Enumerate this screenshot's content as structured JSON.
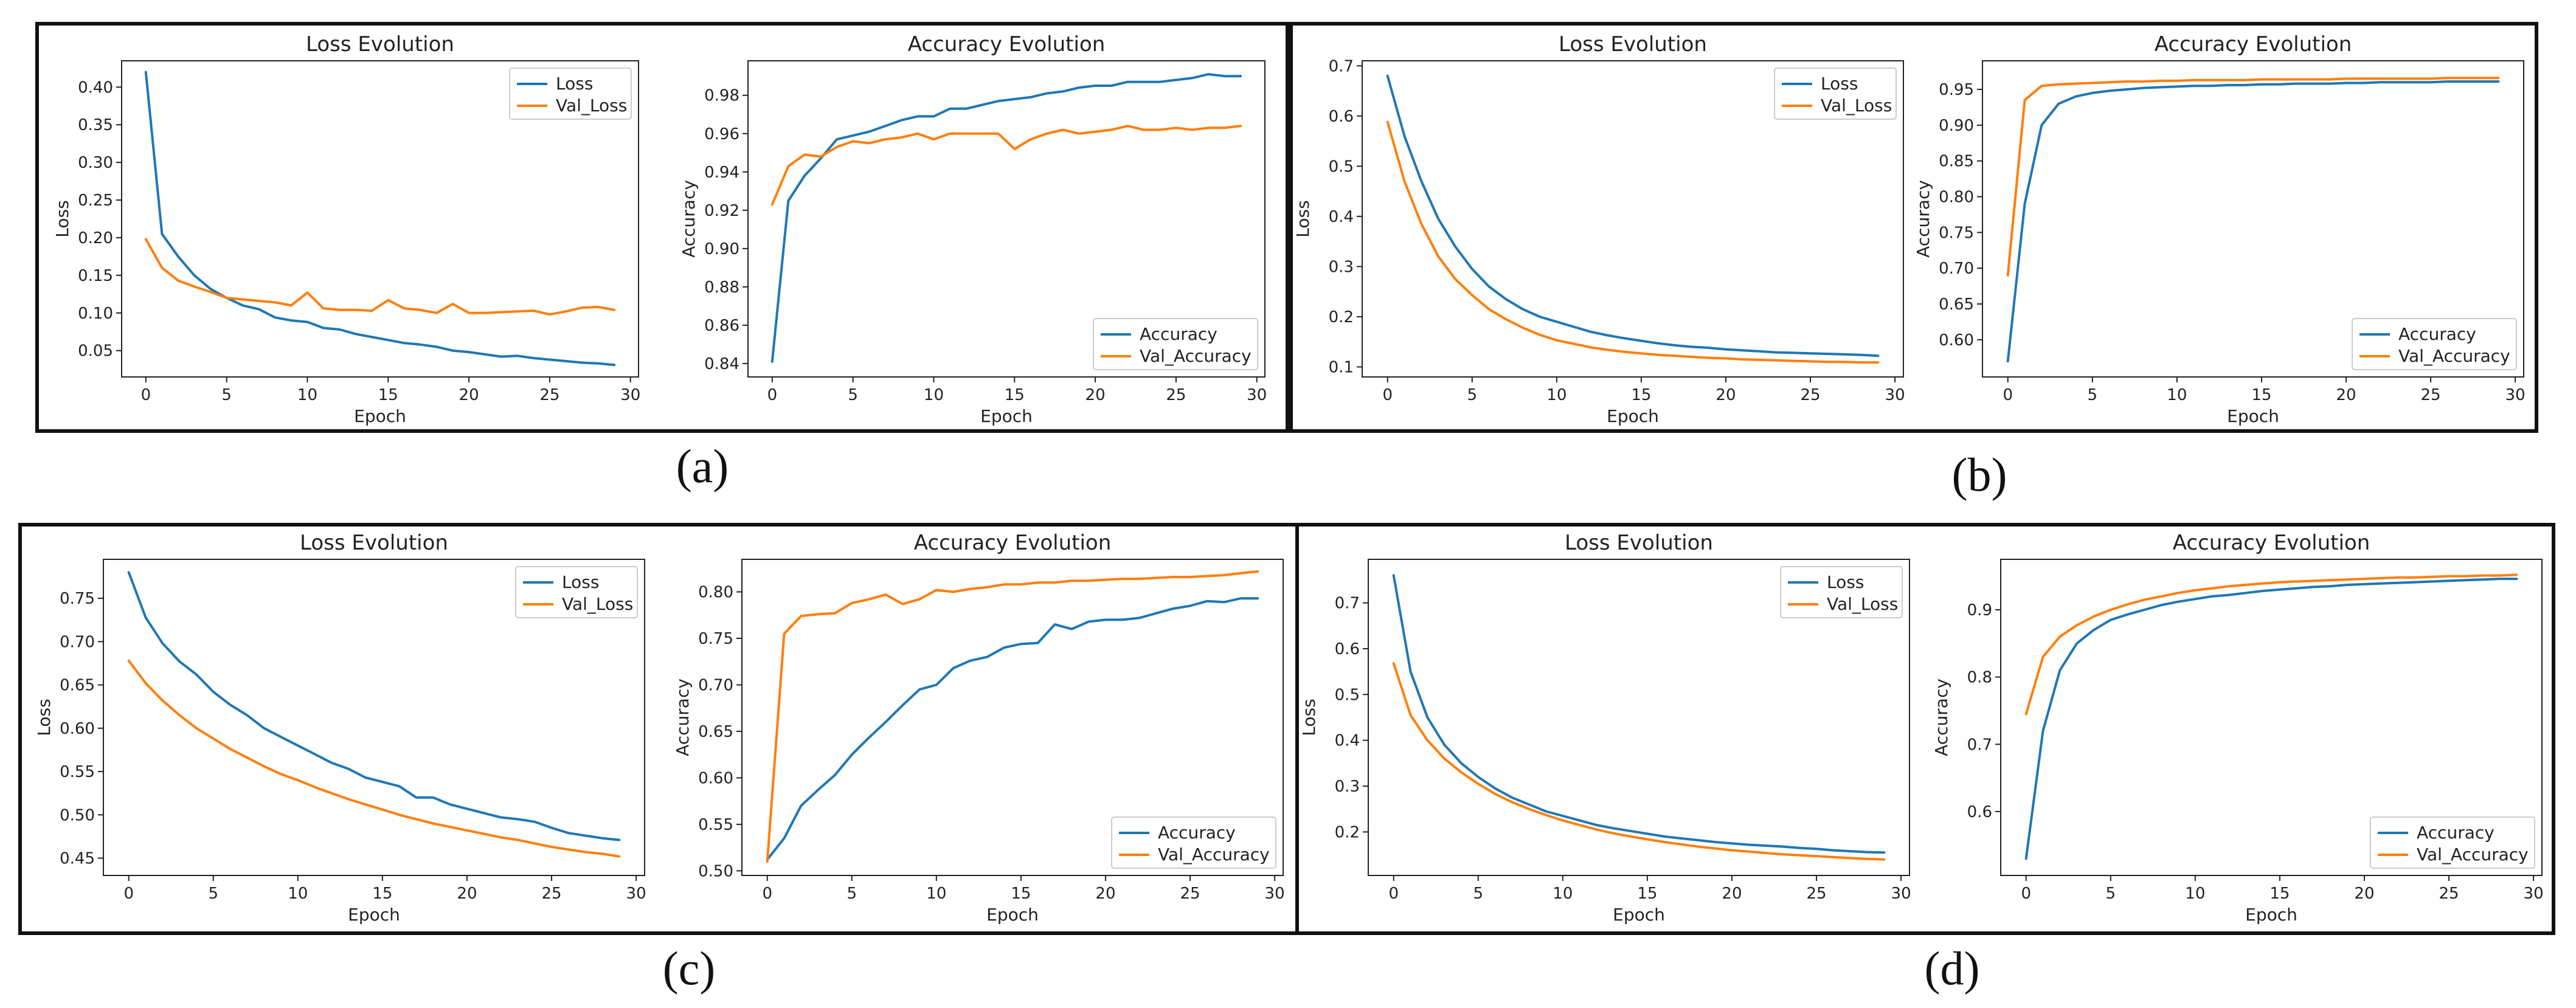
{
  "panels": [
    {
      "id": "a",
      "caption": "(a)"
    },
    {
      "id": "b",
      "caption": "(b)"
    },
    {
      "id": "c",
      "caption": "(c)"
    },
    {
      "id": "d",
      "caption": "(d)"
    }
  ],
  "colors": {
    "series1": "#1f77b4",
    "series2": "#ff7f0e"
  },
  "chart_data": [
    {
      "panel": "a",
      "type": "line",
      "title": "Loss Evolution",
      "xlabel": "Epoch",
      "ylabel": "Loss",
      "xlim": [
        -1.5,
        30.5
      ],
      "ylim": [
        0.015,
        0.435
      ],
      "xticks": [
        0,
        5,
        10,
        15,
        20,
        25,
        30
      ],
      "yticks": [
        0.05,
        0.1,
        0.15,
        0.2,
        0.25,
        0.3,
        0.35,
        0.4
      ],
      "ytick_labels": [
        "0.05",
        "0.10",
        "0.15",
        "0.20",
        "0.25",
        "0.30",
        "0.35",
        "0.40"
      ],
      "legend_loc": "upper right",
      "x": [
        0,
        1,
        2,
        3,
        4,
        5,
        6,
        7,
        8,
        9,
        10,
        11,
        12,
        13,
        14,
        15,
        16,
        17,
        18,
        19,
        20,
        21,
        22,
        23,
        24,
        25,
        26,
        27,
        28,
        29
      ],
      "series": [
        {
          "name": "Loss",
          "values": [
            0.42,
            0.205,
            0.175,
            0.15,
            0.132,
            0.12,
            0.11,
            0.105,
            0.094,
            0.09,
            0.088,
            0.08,
            0.078,
            0.072,
            0.068,
            0.064,
            0.06,
            0.058,
            0.055,
            0.05,
            0.048,
            0.045,
            0.042,
            0.043,
            0.04,
            0.038,
            0.036,
            0.034,
            0.033,
            0.031
          ]
        },
        {
          "name": "Val_Loss",
          "values": [
            0.198,
            0.16,
            0.143,
            0.135,
            0.128,
            0.12,
            0.118,
            0.116,
            0.114,
            0.11,
            0.127,
            0.106,
            0.104,
            0.104,
            0.103,
            0.117,
            0.106,
            0.104,
            0.1,
            0.112,
            0.1,
            0.1,
            0.101,
            0.102,
            0.103,
            0.098,
            0.102,
            0.107,
            0.108,
            0.104
          ]
        }
      ]
    },
    {
      "panel": "a",
      "type": "line",
      "title": "Accuracy Evolution",
      "xlabel": "Epoch",
      "ylabel": "Accuracy",
      "xlim": [
        -1.5,
        30.5
      ],
      "ylim": [
        0.833,
        0.998
      ],
      "xticks": [
        0,
        5,
        10,
        15,
        20,
        25,
        30
      ],
      "yticks": [
        0.84,
        0.86,
        0.88,
        0.9,
        0.92,
        0.94,
        0.96,
        0.98
      ],
      "ytick_labels": [
        "0.84",
        "0.86",
        "0.88",
        "0.90",
        "0.92",
        "0.94",
        "0.96",
        "0.98"
      ],
      "legend_loc": "lower right",
      "x": [
        0,
        1,
        2,
        3,
        4,
        5,
        6,
        7,
        8,
        9,
        10,
        11,
        12,
        13,
        14,
        15,
        16,
        17,
        18,
        19,
        20,
        21,
        22,
        23,
        24,
        25,
        26,
        27,
        28,
        29
      ],
      "series": [
        {
          "name": "Accuracy",
          "values": [
            0.841,
            0.925,
            0.938,
            0.947,
            0.957,
            0.959,
            0.961,
            0.964,
            0.967,
            0.969,
            0.969,
            0.973,
            0.973,
            0.975,
            0.977,
            0.978,
            0.979,
            0.981,
            0.982,
            0.984,
            0.985,
            0.985,
            0.987,
            0.987,
            0.987,
            0.988,
            0.989,
            0.991,
            0.99,
            0.99
          ]
        },
        {
          "name": "Val_Accuracy",
          "values": [
            0.923,
            0.943,
            0.949,
            0.948,
            0.953,
            0.956,
            0.955,
            0.957,
            0.958,
            0.96,
            0.957,
            0.96,
            0.96,
            0.96,
            0.96,
            0.952,
            0.957,
            0.96,
            0.962,
            0.96,
            0.961,
            0.962,
            0.964,
            0.962,
            0.962,
            0.963,
            0.962,
            0.963,
            0.963,
            0.964
          ]
        }
      ]
    },
    {
      "panel": "b",
      "type": "line",
      "title": "Loss Evolution",
      "xlabel": "Epoch",
      "ylabel": "Loss",
      "xlim": [
        -1.5,
        30.5
      ],
      "ylim": [
        0.08,
        0.71
      ],
      "xticks": [
        0,
        5,
        10,
        15,
        20,
        25,
        30
      ],
      "yticks": [
        0.1,
        0.2,
        0.3,
        0.4,
        0.5,
        0.6,
        0.7
      ],
      "ytick_labels": [
        "0.1",
        "0.2",
        "0.3",
        "0.4",
        "0.5",
        "0.6",
        "0.7"
      ],
      "legend_loc": "upper right",
      "x": [
        0,
        1,
        2,
        3,
        4,
        5,
        6,
        7,
        8,
        9,
        10,
        11,
        12,
        13,
        14,
        15,
        16,
        17,
        18,
        19,
        20,
        21,
        22,
        23,
        24,
        25,
        26,
        27,
        28,
        29
      ],
      "series": [
        {
          "name": "Loss",
          "values": [
            0.68,
            0.56,
            0.47,
            0.395,
            0.34,
            0.295,
            0.26,
            0.235,
            0.215,
            0.2,
            0.19,
            0.18,
            0.17,
            0.163,
            0.157,
            0.152,
            0.147,
            0.143,
            0.14,
            0.138,
            0.135,
            0.133,
            0.131,
            0.129,
            0.128,
            0.127,
            0.126,
            0.125,
            0.124,
            0.122
          ]
        },
        {
          "name": "Val_Loss",
          "values": [
            0.588,
            0.47,
            0.385,
            0.32,
            0.275,
            0.243,
            0.215,
            0.195,
            0.178,
            0.164,
            0.153,
            0.146,
            0.139,
            0.134,
            0.13,
            0.127,
            0.124,
            0.122,
            0.12,
            0.118,
            0.117,
            0.115,
            0.114,
            0.113,
            0.112,
            0.111,
            0.11,
            0.11,
            0.109,
            0.109
          ]
        }
      ]
    },
    {
      "panel": "b",
      "type": "line",
      "title": "Accuracy Evolution",
      "xlabel": "Epoch",
      "ylabel": "Accuracy",
      "xlim": [
        -1.5,
        30.5
      ],
      "ylim": [
        0.548,
        0.99
      ],
      "xticks": [
        0,
        5,
        10,
        15,
        20,
        25,
        30
      ],
      "yticks": [
        0.6,
        0.65,
        0.7,
        0.75,
        0.8,
        0.85,
        0.9,
        0.95
      ],
      "ytick_labels": [
        "0.60",
        "0.65",
        "0.70",
        "0.75",
        "0.80",
        "0.85",
        "0.90",
        "0.95"
      ],
      "legend_loc": "lower right",
      "x": [
        0,
        1,
        2,
        3,
        4,
        5,
        6,
        7,
        8,
        9,
        10,
        11,
        12,
        13,
        14,
        15,
        16,
        17,
        18,
        19,
        20,
        21,
        22,
        23,
        24,
        25,
        26,
        27,
        28,
        29
      ],
      "series": [
        {
          "name": "Accuracy",
          "values": [
            0.57,
            0.79,
            0.9,
            0.93,
            0.94,
            0.945,
            0.948,
            0.95,
            0.952,
            0.953,
            0.954,
            0.955,
            0.955,
            0.956,
            0.956,
            0.957,
            0.957,
            0.958,
            0.958,
            0.958,
            0.959,
            0.959,
            0.96,
            0.96,
            0.96,
            0.96,
            0.961,
            0.961,
            0.961,
            0.961
          ]
        },
        {
          "name": "Val_Accuracy",
          "values": [
            0.69,
            0.935,
            0.955,
            0.957,
            0.958,
            0.959,
            0.96,
            0.961,
            0.961,
            0.962,
            0.962,
            0.963,
            0.963,
            0.963,
            0.963,
            0.964,
            0.964,
            0.964,
            0.964,
            0.964,
            0.965,
            0.965,
            0.965,
            0.965,
            0.965,
            0.965,
            0.966,
            0.966,
            0.966,
            0.966
          ]
        }
      ]
    },
    {
      "panel": "c",
      "type": "line",
      "title": "Loss Evolution",
      "xlabel": "Epoch",
      "ylabel": "Loss",
      "xlim": [
        -1.5,
        30.5
      ],
      "ylim": [
        0.43,
        0.795
      ],
      "xticks": [
        0,
        5,
        10,
        15,
        20,
        25,
        30
      ],
      "yticks": [
        0.45,
        0.5,
        0.55,
        0.6,
        0.65,
        0.7,
        0.75
      ],
      "ytick_labels": [
        "0.45",
        "0.50",
        "0.55",
        "0.60",
        "0.65",
        "0.70",
        "0.75"
      ],
      "legend_loc": "upper right",
      "x": [
        0,
        1,
        2,
        3,
        4,
        5,
        6,
        7,
        8,
        9,
        10,
        11,
        12,
        13,
        14,
        15,
        16,
        17,
        18,
        19,
        20,
        21,
        22,
        23,
        24,
        25,
        26,
        27,
        28,
        29
      ],
      "series": [
        {
          "name": "Loss",
          "values": [
            0.78,
            0.728,
            0.698,
            0.677,
            0.662,
            0.642,
            0.627,
            0.615,
            0.6,
            0.59,
            0.58,
            0.57,
            0.56,
            0.553,
            0.543,
            0.538,
            0.533,
            0.52,
            0.52,
            0.512,
            0.507,
            0.502,
            0.497,
            0.495,
            0.492,
            0.485,
            0.479,
            0.476,
            0.473,
            0.471
          ]
        },
        {
          "name": "Val_Loss",
          "values": [
            0.678,
            0.652,
            0.632,
            0.615,
            0.6,
            0.588,
            0.576,
            0.566,
            0.556,
            0.547,
            0.54,
            0.532,
            0.525,
            0.518,
            0.512,
            0.506,
            0.5,
            0.495,
            0.49,
            0.486,
            0.482,
            0.478,
            0.474,
            0.471,
            0.467,
            0.463,
            0.46,
            0.457,
            0.455,
            0.452
          ]
        }
      ]
    },
    {
      "panel": "c",
      "type": "line",
      "title": "Accuracy Evolution",
      "xlabel": "Epoch",
      "ylabel": "Accuracy",
      "xlim": [
        -1.5,
        30.5
      ],
      "ylim": [
        0.495,
        0.835
      ],
      "xticks": [
        0,
        5,
        10,
        15,
        20,
        25,
        30
      ],
      "yticks": [
        0.5,
        0.55,
        0.6,
        0.65,
        0.7,
        0.75,
        0.8
      ],
      "ytick_labels": [
        "0.50",
        "0.55",
        "0.60",
        "0.65",
        "0.70",
        "0.75",
        "0.80"
      ],
      "legend_loc": "lower right",
      "x": [
        0,
        1,
        2,
        3,
        4,
        5,
        6,
        7,
        8,
        9,
        10,
        11,
        12,
        13,
        14,
        15,
        16,
        17,
        18,
        19,
        20,
        21,
        22,
        23,
        24,
        25,
        26,
        27,
        28,
        29
      ],
      "series": [
        {
          "name": "Accuracy",
          "values": [
            0.512,
            0.535,
            0.57,
            0.587,
            0.603,
            0.625,
            0.643,
            0.66,
            0.678,
            0.695,
            0.7,
            0.718,
            0.726,
            0.73,
            0.74,
            0.744,
            0.745,
            0.765,
            0.76,
            0.768,
            0.77,
            0.77,
            0.772,
            0.777,
            0.782,
            0.785,
            0.79,
            0.789,
            0.793,
            0.793
          ]
        },
        {
          "name": "Val_Accuracy",
          "values": [
            0.51,
            0.755,
            0.774,
            0.776,
            0.777,
            0.788,
            0.792,
            0.797,
            0.787,
            0.792,
            0.802,
            0.8,
            0.803,
            0.805,
            0.808,
            0.808,
            0.81,
            0.81,
            0.812,
            0.812,
            0.813,
            0.814,
            0.814,
            0.815,
            0.816,
            0.816,
            0.817,
            0.818,
            0.82,
            0.822
          ]
        }
      ]
    },
    {
      "panel": "d",
      "type": "line",
      "title": "Loss Evolution",
      "xlabel": "Epoch",
      "ylabel": "Loss",
      "xlim": [
        -1.5,
        30.5
      ],
      "ylim": [
        0.105,
        0.795
      ],
      "xticks": [
        0,
        5,
        10,
        15,
        20,
        25,
        30
      ],
      "yticks": [
        0.2,
        0.3,
        0.4,
        0.5,
        0.6,
        0.7
      ],
      "ytick_labels": [
        "0.2",
        "0.3",
        "0.4",
        "0.5",
        "0.6",
        "0.7"
      ],
      "legend_loc": "upper right",
      "x": [
        0,
        1,
        2,
        3,
        4,
        5,
        6,
        7,
        8,
        9,
        10,
        11,
        12,
        13,
        14,
        15,
        16,
        17,
        18,
        19,
        20,
        21,
        22,
        23,
        24,
        25,
        26,
        27,
        28,
        29
      ],
      "series": [
        {
          "name": "Loss",
          "values": [
            0.76,
            0.55,
            0.45,
            0.39,
            0.35,
            0.32,
            0.295,
            0.275,
            0.26,
            0.245,
            0.235,
            0.225,
            0.215,
            0.208,
            0.202,
            0.196,
            0.19,
            0.186,
            0.182,
            0.178,
            0.175,
            0.172,
            0.17,
            0.168,
            0.165,
            0.163,
            0.16,
            0.158,
            0.156,
            0.155
          ]
        },
        {
          "name": "Val_Loss",
          "values": [
            0.568,
            0.455,
            0.4,
            0.36,
            0.33,
            0.305,
            0.283,
            0.265,
            0.25,
            0.237,
            0.225,
            0.215,
            0.205,
            0.197,
            0.19,
            0.184,
            0.178,
            0.173,
            0.168,
            0.164,
            0.16,
            0.157,
            0.154,
            0.151,
            0.149,
            0.147,
            0.145,
            0.143,
            0.141,
            0.14
          ]
        }
      ]
    },
    {
      "panel": "d",
      "type": "line",
      "title": "Accuracy Evolution",
      "xlabel": "Epoch",
      "ylabel": "Accuracy",
      "xlim": [
        -1.5,
        30.5
      ],
      "ylim": [
        0.505,
        0.975
      ],
      "xticks": [
        0,
        5,
        10,
        15,
        20,
        25,
        30
      ],
      "yticks": [
        0.6,
        0.7,
        0.8,
        0.9
      ],
      "ytick_labels": [
        "0.6",
        "0.7",
        "0.8",
        "0.9"
      ],
      "legend_loc": "lower right",
      "x": [
        0,
        1,
        2,
        3,
        4,
        5,
        6,
        7,
        8,
        9,
        10,
        11,
        12,
        13,
        14,
        15,
        16,
        17,
        18,
        19,
        20,
        21,
        22,
        23,
        24,
        25,
        26,
        27,
        28,
        29
      ],
      "series": [
        {
          "name": "Accuracy",
          "values": [
            0.53,
            0.72,
            0.81,
            0.85,
            0.87,
            0.885,
            0.893,
            0.9,
            0.907,
            0.912,
            0.916,
            0.92,
            0.922,
            0.925,
            0.928,
            0.93,
            0.932,
            0.934,
            0.935,
            0.937,
            0.938,
            0.939,
            0.94,
            0.941,
            0.942,
            0.943,
            0.944,
            0.945,
            0.946,
            0.946
          ]
        },
        {
          "name": "Val_Accuracy",
          "values": [
            0.745,
            0.83,
            0.86,
            0.877,
            0.89,
            0.9,
            0.908,
            0.915,
            0.92,
            0.925,
            0.929,
            0.932,
            0.935,
            0.937,
            0.939,
            0.941,
            0.942,
            0.943,
            0.944,
            0.945,
            0.946,
            0.947,
            0.948,
            0.948,
            0.949,
            0.95,
            0.95,
            0.951,
            0.951,
            0.952
          ]
        }
      ]
    }
  ]
}
